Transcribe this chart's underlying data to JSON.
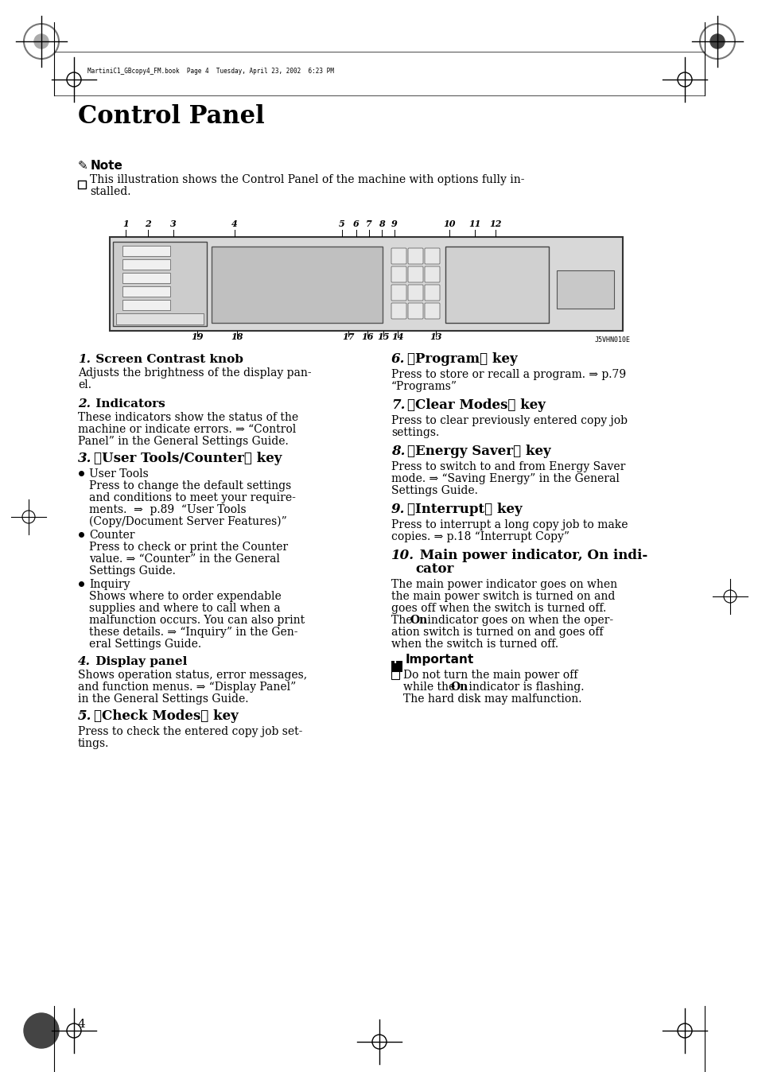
{
  "bg_color": "#ffffff",
  "page_width": 9.54,
  "page_height": 13.48,
  "title": "Control Panel",
  "header_text": "MartiniC1_GBcopy4_FM.book  Page 4  Tuesday, April 23, 2002  6:23 PM",
  "note_label": "Note",
  "note_text_line1": "This illustration shows the Control Panel of the machine with options fully in-",
  "note_text_line2": "stalled.",
  "page_number": "4"
}
